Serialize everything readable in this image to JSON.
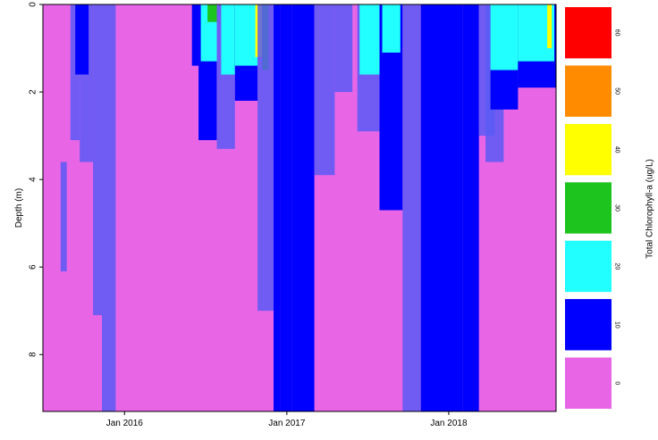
{
  "chart_data": {
    "type": "heatmap",
    "title": "",
    "xlabel": "",
    "ylabel": "Depth (m)",
    "y_reversed": true,
    "ylim": [
      0,
      9.3
    ],
    "xlim": [
      "2015-07-01",
      "2018-08-31"
    ],
    "y_ticks": [
      0,
      2,
      4,
      6,
      8
    ],
    "x_ticks": [
      {
        "date": "2016-01-01",
        "label": "Jan 2016"
      },
      {
        "date": "2017-01-01",
        "label": "Jan 2017"
      },
      {
        "date": "2018-01-01",
        "label": "Jan 2018"
      }
    ],
    "colorbar": {
      "title": "Total Chlorophyll-a (ug/L)",
      "levels": [
        {
          "value": 0,
          "label": "0",
          "color": "#e866e6"
        },
        {
          "value": 10,
          "label": "10",
          "color": "#0000ff"
        },
        {
          "value": 20,
          "label": "20",
          "color": "#22ffff"
        },
        {
          "value": 30,
          "label": "30",
          "color": "#1ec41e"
        },
        {
          "value": 40,
          "label": "40",
          "color": "#ffff00"
        },
        {
          "value": 50,
          "label": "50",
          "color": "#ff8c00"
        },
        {
          "value": 60,
          "label": "60",
          "color": "#ff0000"
        }
      ]
    },
    "background_value": 0,
    "bands": [
      {
        "date_start": "2015-08-10",
        "date_end": "2015-08-24",
        "depth_top": 3.6,
        "depth_bottom": 6.1,
        "value": 5
      },
      {
        "date_start": "2015-09-01",
        "date_end": "2015-09-22",
        "depth_top": 0,
        "depth_bottom": 3.1,
        "value": 8
      },
      {
        "date_start": "2015-09-22",
        "date_end": "2015-10-22",
        "depth_top": 0,
        "depth_bottom": 3.6,
        "value": 9
      },
      {
        "date_start": "2015-09-12",
        "date_end": "2015-10-12",
        "depth_top": 0,
        "depth_bottom": 1.6,
        "value": 19
      },
      {
        "date_start": "2015-10-22",
        "date_end": "2015-11-11",
        "depth_top": 0,
        "depth_bottom": 7.1,
        "value": 7
      },
      {
        "date_start": "2015-11-11",
        "date_end": "2015-12-12",
        "depth_top": 0,
        "depth_bottom": 9.3,
        "value": 6
      },
      {
        "date_start": "2016-06-01",
        "date_end": "2016-06-16",
        "depth_top": 0,
        "depth_bottom": 1.4,
        "value": 12
      },
      {
        "date_start": "2016-06-16",
        "date_end": "2016-07-27",
        "depth_top": 0,
        "depth_bottom": 3.1,
        "value": 10
      },
      {
        "date_start": "2016-06-21",
        "date_end": "2016-07-27",
        "depth_top": 0,
        "depth_bottom": 1.3,
        "value": 22
      },
      {
        "date_start": "2016-07-06",
        "date_end": "2016-07-27",
        "depth_top": 0,
        "depth_bottom": 0.4,
        "value": 33
      },
      {
        "date_start": "2016-07-27",
        "date_end": "2016-09-06",
        "depth_top": 0,
        "depth_bottom": 3.3,
        "value": 9
      },
      {
        "date_start": "2016-08-06",
        "date_end": "2016-09-06",
        "depth_top": 0,
        "depth_bottom": 1.6,
        "value": 21
      },
      {
        "date_start": "2016-09-06",
        "date_end": "2016-10-27",
        "depth_top": 0,
        "depth_bottom": 2.2,
        "value": 12
      },
      {
        "date_start": "2016-09-06",
        "date_end": "2016-10-27",
        "depth_top": 0,
        "depth_bottom": 1.4,
        "value": 22
      },
      {
        "date_start": "2016-10-22",
        "date_end": "2016-11-06",
        "depth_top": 0,
        "depth_bottom": 1.2,
        "value": 47
      },
      {
        "date_start": "2016-11-06",
        "date_end": "2016-11-21",
        "depth_top": 0,
        "depth_bottom": 1.5,
        "value": 31
      },
      {
        "date_start": "2016-10-27",
        "date_end": "2016-12-02",
        "depth_top": 0,
        "depth_bottom": 7.0,
        "value": 6
      },
      {
        "date_start": "2016-12-02",
        "date_end": "2016-12-17",
        "depth_top": 0,
        "depth_bottom": 9.3,
        "value": 11
      },
      {
        "date_start": "2016-12-17",
        "date_end": "2017-01-12",
        "depth_top": 0,
        "depth_bottom": 9.3,
        "value": 13
      },
      {
        "date_start": "2017-01-12",
        "date_end": "2017-03-04",
        "depth_top": 0,
        "depth_bottom": 9.3,
        "value": 10
      },
      {
        "date_start": "2017-03-04",
        "date_end": "2017-04-19",
        "depth_top": 0,
        "depth_bottom": 3.9,
        "value": 6
      },
      {
        "date_start": "2017-04-19",
        "date_end": "2017-05-29",
        "depth_top": 0,
        "depth_bottom": 2.0,
        "value": 6
      },
      {
        "date_start": "2017-06-09",
        "date_end": "2017-07-29",
        "depth_top": 0,
        "depth_bottom": 2.9,
        "value": 9
      },
      {
        "date_start": "2017-06-14",
        "date_end": "2017-08-19",
        "depth_top": 0,
        "depth_bottom": 1.6,
        "value": 22
      },
      {
        "date_start": "2017-07-29",
        "date_end": "2017-09-19",
        "depth_top": 0,
        "depth_bottom": 4.7,
        "value": 11
      },
      {
        "date_start": "2017-08-04",
        "date_end": "2017-09-14",
        "depth_top": 0,
        "depth_bottom": 1.1,
        "value": 28
      },
      {
        "date_start": "2017-09-19",
        "date_end": "2017-10-30",
        "depth_top": 0,
        "depth_bottom": 9.3,
        "value": 8
      },
      {
        "date_start": "2017-10-30",
        "date_end": "2018-02-02",
        "depth_top": 0,
        "depth_bottom": 9.3,
        "value": 12
      },
      {
        "date_start": "2018-02-02",
        "date_end": "2018-03-10",
        "depth_top": 0,
        "depth_bottom": 9.3,
        "value": 11
      },
      {
        "date_start": "2018-03-10",
        "date_end": "2018-04-15",
        "depth_top": 0,
        "depth_bottom": 3.0,
        "value": 7
      },
      {
        "date_start": "2018-03-25",
        "date_end": "2018-05-05",
        "depth_top": 0,
        "depth_bottom": 3.6,
        "value": 9
      },
      {
        "date_start": "2018-04-05",
        "date_end": "2018-06-06",
        "depth_top": 0,
        "depth_bottom": 2.4,
        "value": 12
      },
      {
        "date_start": "2018-04-05",
        "date_end": "2018-06-26",
        "depth_top": 0,
        "depth_bottom": 1.5,
        "value": 21
      },
      {
        "date_start": "2018-06-06",
        "date_end": "2018-08-31",
        "depth_top": 0,
        "depth_bottom": 1.9,
        "value": 11
      },
      {
        "date_start": "2018-06-06",
        "date_end": "2018-08-27",
        "depth_top": 0,
        "depth_bottom": 1.3,
        "value": 22
      },
      {
        "date_start": "2018-08-11",
        "date_end": "2018-08-21",
        "depth_top": 0,
        "depth_bottom": 1.0,
        "value": 42
      }
    ]
  }
}
